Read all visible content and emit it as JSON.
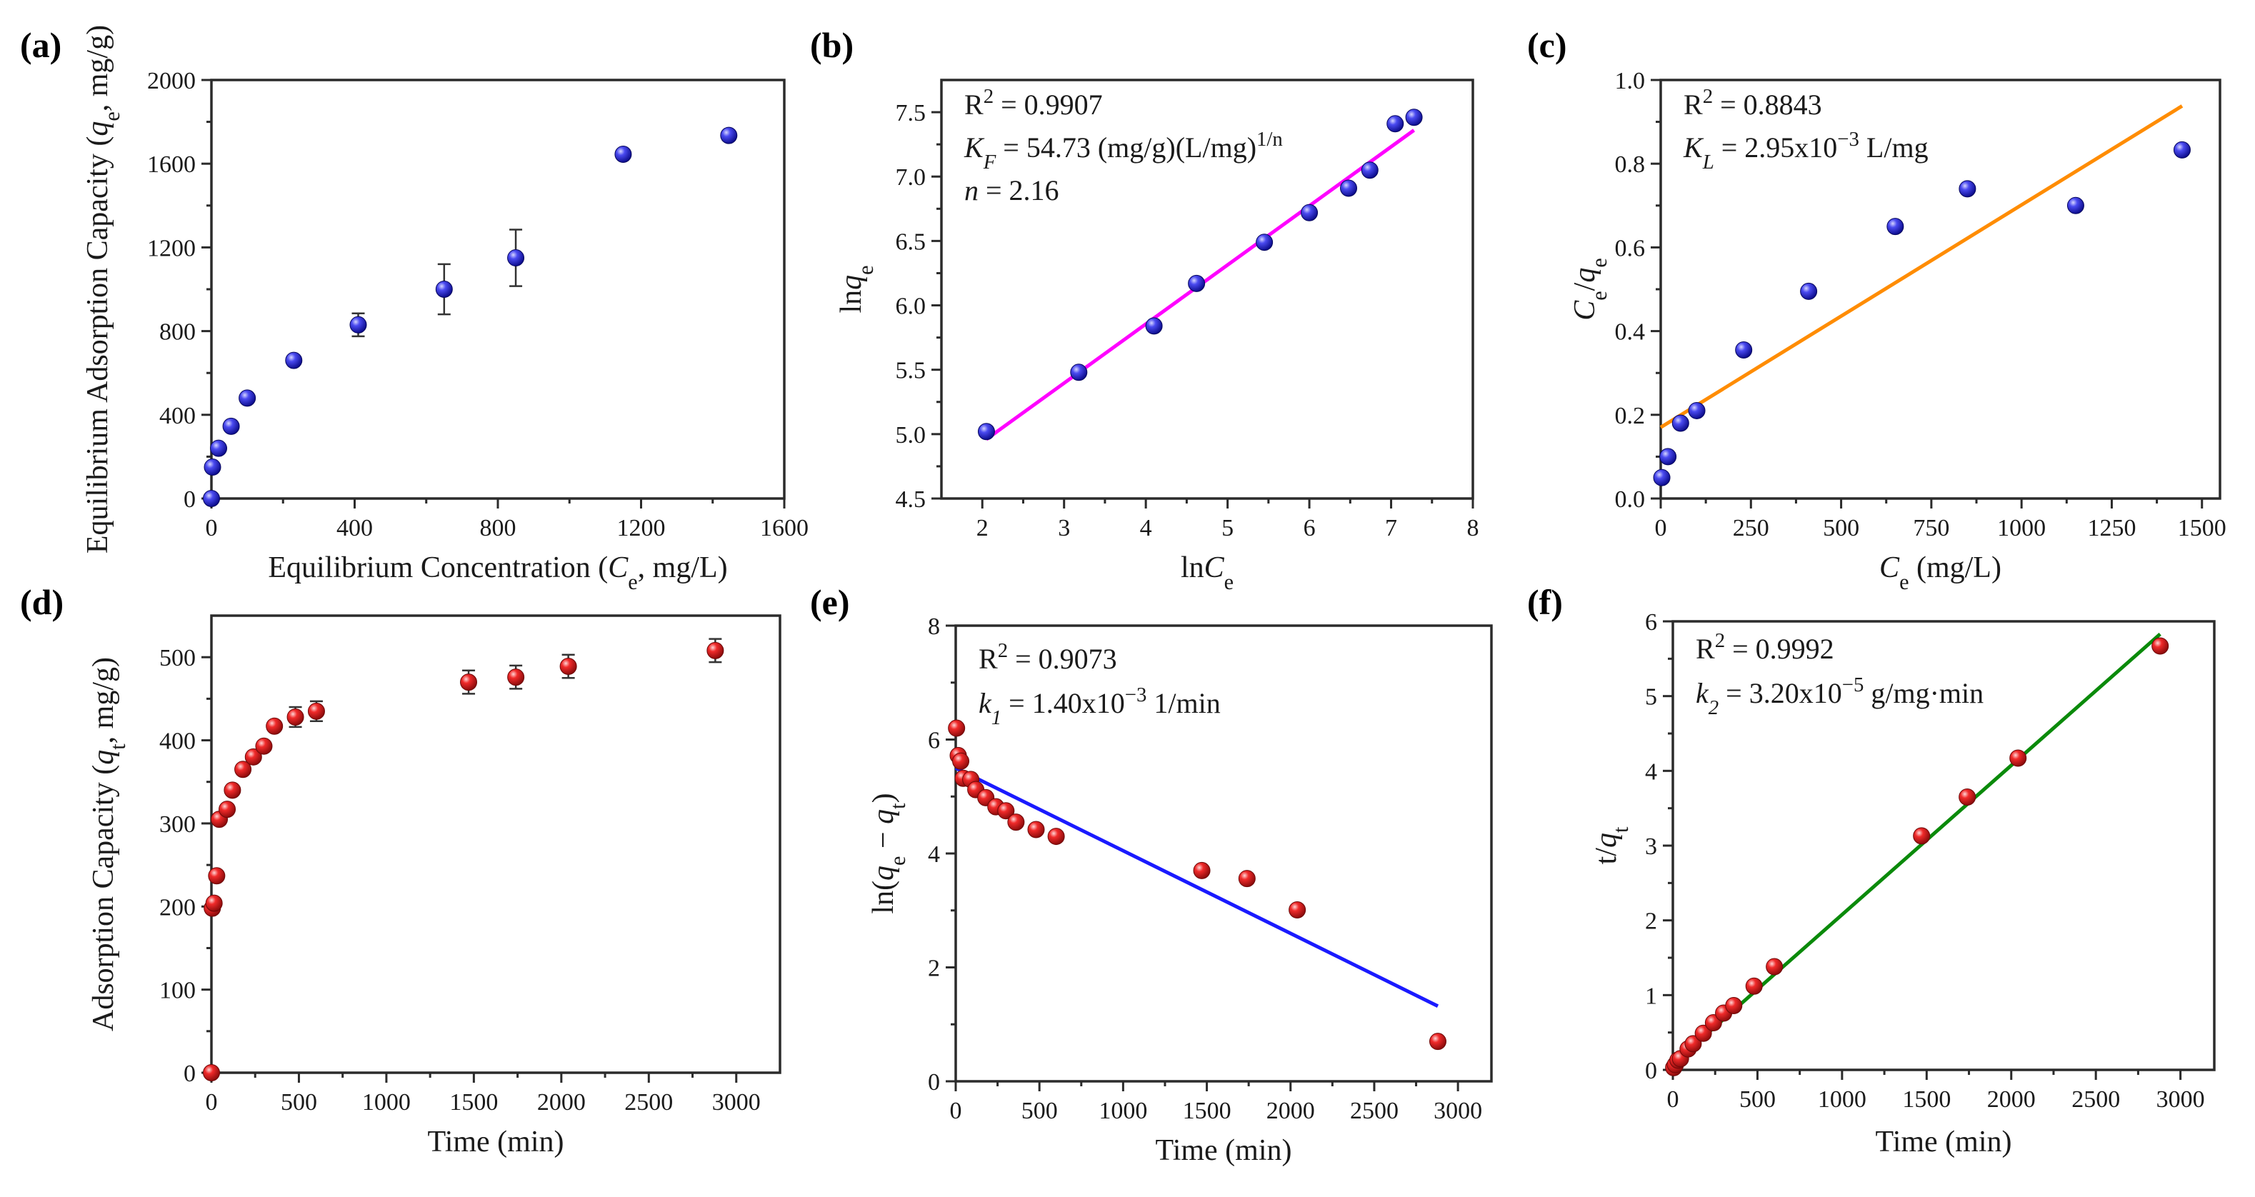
{
  "colors": {
    "blue_marker": "#2323d9",
    "red_marker": "#e01818",
    "fit_magenta": "#ff00ff",
    "fit_orange": "#ff8c00",
    "fit_blue": "#1a1aff",
    "fit_green": "#0a8a0a",
    "axis": "#2b2b2b"
  },
  "chart_data": [
    {
      "id": "a",
      "panel_label": "(a)",
      "type": "scatter",
      "xlabel": "Equilibrium Concentration (Ce, mg/L)",
      "ylabel": "Equilibrium Adsorption Capacity (qe, mg/g)",
      "xlim": [
        0,
        1600
      ],
      "ylim": [
        0,
        2000
      ],
      "xticks": [
        0,
        400,
        800,
        1200,
        1600
      ],
      "yticks": [
        0,
        400,
        800,
        1200,
        1600,
        2000
      ],
      "marker": "blue",
      "points": [
        {
          "x": 0,
          "y": 0
        },
        {
          "x": 3,
          "y": 150
        },
        {
          "x": 20,
          "y": 240
        },
        {
          "x": 55,
          "y": 345
        },
        {
          "x": 100,
          "y": 480
        },
        {
          "x": 230,
          "y": 660
        },
        {
          "x": 410,
          "y": 830,
          "err": 55
        },
        {
          "x": 650,
          "y": 1000,
          "err": 120
        },
        {
          "x": 850,
          "y": 1150,
          "err": 135
        },
        {
          "x": 1150,
          "y": 1645
        },
        {
          "x": 1445,
          "y": 1735
        }
      ],
      "annotations": []
    },
    {
      "id": "b",
      "panel_label": "(b)",
      "type": "scatter",
      "xlabel": "ln Ce",
      "ylabel": "ln qe",
      "xlim": [
        1.5,
        8
      ],
      "ylim": [
        4.5,
        7.75
      ],
      "xticks": [
        2,
        3,
        4,
        5,
        6,
        7,
        8
      ],
      "yticks": [
        4.5,
        5.0,
        5.5,
        6.0,
        6.5,
        7.0,
        7.5
      ],
      "marker": "blue",
      "points": [
        {
          "x": 2.05,
          "y": 5.02
        },
        {
          "x": 3.18,
          "y": 5.48
        },
        {
          "x": 4.1,
          "y": 5.84
        },
        {
          "x": 4.62,
          "y": 6.17
        },
        {
          "x": 5.45,
          "y": 6.49
        },
        {
          "x": 6.0,
          "y": 6.72
        },
        {
          "x": 6.48,
          "y": 6.91
        },
        {
          "x": 6.74,
          "y": 7.05
        },
        {
          "x": 7.05,
          "y": 7.41
        },
        {
          "x": 7.28,
          "y": 7.46
        }
      ],
      "fit": {
        "x": [
          2.05,
          7.28
        ],
        "y": [
          4.96,
          7.36
        ],
        "color": "magenta"
      },
      "annotations": [
        "R² = 0.9907",
        "KF = 54.73 (mg/g)(L/mg)1/n",
        "n  = 2.16"
      ]
    },
    {
      "id": "c",
      "panel_label": "(c)",
      "type": "scatter",
      "xlabel": "Ce (mg/L)",
      "ylabel": "Ce/qe",
      "xlim": [
        0,
        1550
      ],
      "ylim": [
        0,
        1.0
      ],
      "xticks": [
        0,
        250,
        500,
        750,
        1000,
        1250,
        1500
      ],
      "yticks": [
        0.0,
        0.2,
        0.4,
        0.6,
        0.8,
        1.0
      ],
      "marker": "blue",
      "points": [
        {
          "x": 3,
          "y": 0.05
        },
        {
          "x": 20,
          "y": 0.1
        },
        {
          "x": 55,
          "y": 0.18
        },
        {
          "x": 100,
          "y": 0.21
        },
        {
          "x": 230,
          "y": 0.355
        },
        {
          "x": 410,
          "y": 0.495
        },
        {
          "x": 650,
          "y": 0.65
        },
        {
          "x": 850,
          "y": 0.74
        },
        {
          "x": 1150,
          "y": 0.7
        },
        {
          "x": 1445,
          "y": 0.833
        }
      ],
      "fit": {
        "x": [
          0,
          1445
        ],
        "y": [
          0.17,
          0.938
        ],
        "color": "orange"
      },
      "annotations": [
        "R² = 0.8843",
        "KL = 2.95x10⁻³ L/mg"
      ]
    },
    {
      "id": "d",
      "panel_label": "(d)",
      "type": "scatter",
      "xlabel": "Time (min)",
      "ylabel": "Adsorption Capacity (qt, mg/g)",
      "xlim": [
        0,
        3250
      ],
      "ylim": [
        0,
        550
      ],
      "xticks": [
        0,
        500,
        1000,
        1500,
        2000,
        2500,
        3000
      ],
      "yticks": [
        0,
        100,
        200,
        300,
        400,
        500
      ],
      "marker": "red",
      "points": [
        {
          "x": 0,
          "y": 0
        },
        {
          "x": 5,
          "y": 198
        },
        {
          "x": 15,
          "y": 204
        },
        {
          "x": 30,
          "y": 237
        },
        {
          "x": 45,
          "y": 305
        },
        {
          "x": 90,
          "y": 317
        },
        {
          "x": 120,
          "y": 340
        },
        {
          "x": 180,
          "y": 365
        },
        {
          "x": 240,
          "y": 380
        },
        {
          "x": 300,
          "y": 393
        },
        {
          "x": 360,
          "y": 417
        },
        {
          "x": 480,
          "y": 428,
          "err": 12
        },
        {
          "x": 600,
          "y": 435,
          "err": 12
        },
        {
          "x": 1470,
          "y": 470,
          "err": 14
        },
        {
          "x": 1740,
          "y": 476,
          "err": 14
        },
        {
          "x": 2040,
          "y": 489,
          "err": 14
        },
        {
          "x": 2880,
          "y": 508,
          "err": 14
        }
      ],
      "annotations": []
    },
    {
      "id": "e",
      "panel_label": "(e)",
      "type": "scatter",
      "xlabel": "Time (min)",
      "ylabel": "ln(qe − qt)",
      "xlim": [
        0,
        3200
      ],
      "ylim": [
        0,
        8
      ],
      "xticks": [
        0,
        500,
        1000,
        1500,
        2000,
        2500,
        3000
      ],
      "yticks": [
        0,
        2,
        4,
        6,
        8
      ],
      "marker": "red",
      "points": [
        {
          "x": 5,
          "y": 6.2
        },
        {
          "x": 15,
          "y": 5.72
        },
        {
          "x": 30,
          "y": 5.62
        },
        {
          "x": 45,
          "y": 5.32
        },
        {
          "x": 90,
          "y": 5.3
        },
        {
          "x": 120,
          "y": 5.12
        },
        {
          "x": 180,
          "y": 4.98
        },
        {
          "x": 240,
          "y": 4.82
        },
        {
          "x": 300,
          "y": 4.75
        },
        {
          "x": 360,
          "y": 4.55
        },
        {
          "x": 480,
          "y": 4.42
        },
        {
          "x": 600,
          "y": 4.3
        },
        {
          "x": 1470,
          "y": 3.7
        },
        {
          "x": 1740,
          "y": 3.56
        },
        {
          "x": 2040,
          "y": 3.01
        },
        {
          "x": 2880,
          "y": 0.7
        }
      ],
      "fit": {
        "x": [
          0,
          2880
        ],
        "y": [
          5.5,
          1.32
        ],
        "color": "blue"
      },
      "annotations": [
        "R² = 0.9073",
        "k1 = 1.40x10⁻³ 1/min"
      ]
    },
    {
      "id": "f",
      "panel_label": "(f)",
      "type": "scatter",
      "xlabel": "Time (min)",
      "ylabel": "t/qt",
      "xlim": [
        0,
        3200
      ],
      "ylim": [
        0,
        6
      ],
      "xticks": [
        0,
        500,
        1000,
        1500,
        2000,
        2500,
        3000
      ],
      "yticks": [
        0,
        1,
        2,
        3,
        4,
        5,
        6
      ],
      "marker": "red",
      "points": [
        {
          "x": 5,
          "y": 0.03
        },
        {
          "x": 15,
          "y": 0.07
        },
        {
          "x": 30,
          "y": 0.13
        },
        {
          "x": 45,
          "y": 0.15
        },
        {
          "x": 90,
          "y": 0.28
        },
        {
          "x": 120,
          "y": 0.35
        },
        {
          "x": 180,
          "y": 0.49
        },
        {
          "x": 240,
          "y": 0.63
        },
        {
          "x": 300,
          "y": 0.76
        },
        {
          "x": 360,
          "y": 0.86
        },
        {
          "x": 480,
          "y": 1.12
        },
        {
          "x": 600,
          "y": 1.38
        },
        {
          "x": 1470,
          "y": 3.13
        },
        {
          "x": 1740,
          "y": 3.65
        },
        {
          "x": 2040,
          "y": 4.17
        },
        {
          "x": 2880,
          "y": 5.67
        }
      ],
      "fit": {
        "x": [
          0,
          2880
        ],
        "y": [
          0.08,
          5.83
        ],
        "color": "green"
      },
      "annotations": [
        "R² = 0.9992",
        "k2 = 3.20x10⁻⁵ g/mg·min"
      ]
    }
  ]
}
